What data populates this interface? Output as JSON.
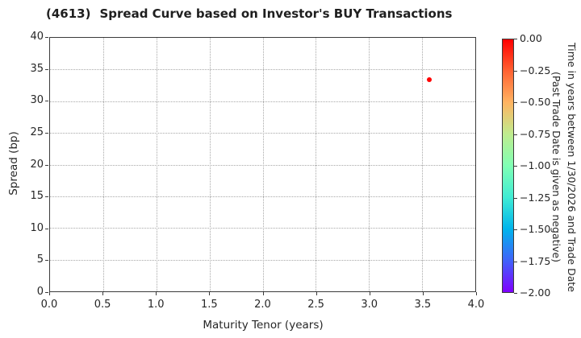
{
  "header": {
    "ticker_code": "(4613)",
    "title": "Spread Curve based on Investor's BUY Transactions"
  },
  "chart_data": {
    "type": "scatter",
    "title": "(4613) Spread Curve based on Investor's BUY Transactions",
    "xlabel": "Maturity Tenor (years)",
    "ylabel": "Spread (bp)",
    "xlim": [
      0.0,
      4.0
    ],
    "ylim": [
      0,
      40
    ],
    "x_ticks": [
      "0.0",
      "0.5",
      "1.0",
      "1.5",
      "2.0",
      "2.5",
      "3.0",
      "3.5",
      "4.0"
    ],
    "y_ticks": [
      "0",
      "5",
      "10",
      "15",
      "20",
      "25",
      "30",
      "35",
      "40"
    ],
    "grid": true,
    "grid_style": "dotted",
    "legend_position": "none",
    "points": [
      {
        "maturity_tenor_years": 3.56,
        "spread_bp": 33.3,
        "trade_time_value": 0.0,
        "color": "#ff0000"
      }
    ],
    "colorbar": {
      "label_line1": "Time in years between 1/30/2026 and Trade Date",
      "label_line2": "(Past Trade Date is given as negative)",
      "tick_labels": [
        "0.00",
        "−0.25",
        "−0.50",
        "−0.75",
        "−1.00",
        "−1.25",
        "−1.50",
        "−1.75",
        "−2.00"
      ],
      "vmax": 0.0,
      "vmin": -2.0,
      "colormap": "rainbow",
      "gradient_top_to_bottom": [
        "#ff0000",
        "#ff6232",
        "#ffb462",
        "#bfec8e",
        "#80ffb4",
        "#40ecd4",
        "#00b4ec",
        "#4062fa",
        "#7f00ff"
      ]
    }
  },
  "colors": {
    "background": "#ffffff",
    "text": "#262626",
    "grid": "#a8a8a8",
    "spine": "#3b3b3b"
  }
}
